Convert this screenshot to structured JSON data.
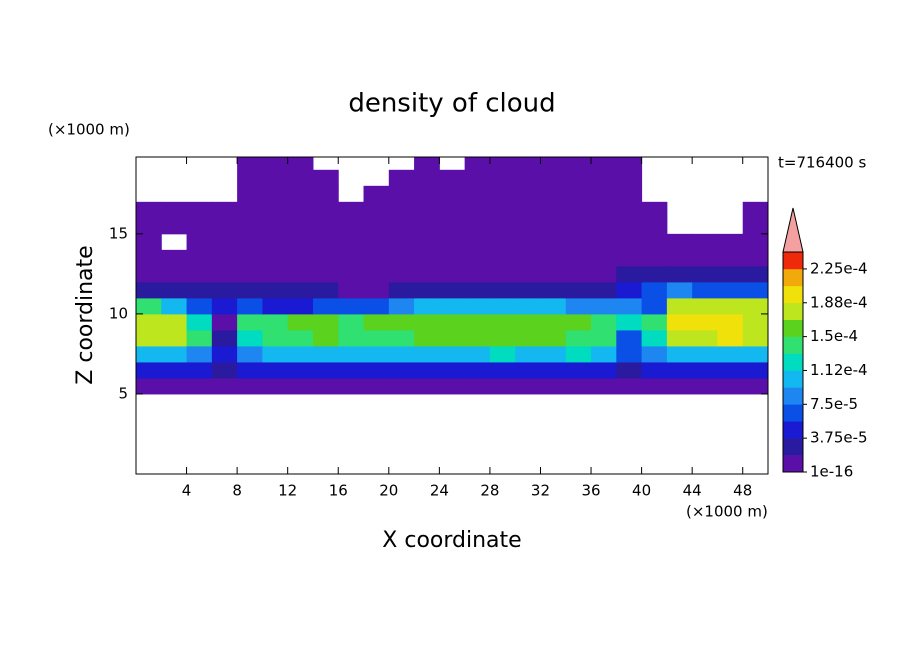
{
  "chart_data": {
    "type": "contour",
    "title": "density of cloud",
    "z_unit_label": "(×1000 m)",
    "x_unit_label": "(×1000 m)",
    "time_label": "t=716400 s",
    "xlabel": "X coordinate",
    "ylabel": "Z coordinate",
    "x": [
      1,
      3,
      5,
      7,
      9,
      11,
      13,
      15,
      17,
      19,
      21,
      23,
      25,
      27,
      29,
      31,
      33,
      35,
      37,
      39,
      41,
      43,
      45,
      47,
      49
    ],
    "z": [
      5.5,
      6.5,
      7.5,
      8.5,
      9.5,
      10.5,
      11.5,
      12.5,
      13.5,
      14.5,
      15.5,
      16.5,
      17.5,
      18.5,
      19.5
    ],
    "values": [
      [
        1.5e-05,
        1.5e-05,
        1.5e-05,
        1.5e-05,
        1.5e-05,
        1.5e-05,
        1.5e-05,
        1.5e-05,
        1.5e-05,
        1.5e-05,
        1.5e-05,
        1.5e-05,
        1.5e-05,
        1.5e-05,
        1.5e-05,
        1.5e-05,
        1.5e-05,
        1.5e-05,
        1.5e-05,
        1.5e-05,
        1.5e-05,
        1.5e-05,
        1.5e-05,
        1.5e-05,
        1.5e-05
      ],
      [
        5e-05,
        5e-05,
        5e-05,
        3e-05,
        5e-05,
        5e-05,
        5e-05,
        5e-05,
        5e-05,
        5e-05,
        5e-05,
        5e-05,
        5e-05,
        5e-05,
        5e-05,
        5e-05,
        5e-05,
        5e-05,
        5e-05,
        3e-05,
        5e-05,
        5e-05,
        5e-05,
        5e-05,
        5e-05
      ],
      [
        0.00011,
        0.00011,
        9e-05,
        5e-05,
        9e-05,
        0.00011,
        0.00011,
        0.00011,
        0.00011,
        0.00011,
        0.00011,
        0.00011,
        0.00011,
        0.00011,
        0.000125,
        0.00011,
        0.00011,
        0.000125,
        0.00011,
        7e-05,
        9e-05,
        0.00011,
        0.00011,
        0.00011,
        0.00011
      ],
      [
        0.00018,
        0.00018,
        0.00014,
        3e-05,
        0.000125,
        0.00014,
        0.00014,
        0.00016,
        0.00014,
        0.00014,
        0.00014,
        0.00016,
        0.00016,
        0.00016,
        0.00016,
        0.00016,
        0.00016,
        0.00014,
        0.00014,
        7e-05,
        0.000125,
        0.00018,
        0.00018,
        0.000195,
        0.00018
      ],
      [
        0.00018,
        0.00018,
        0.000125,
        5e-06,
        0.00014,
        0.00014,
        0.00016,
        0.00016,
        0.00014,
        0.00016,
        0.00016,
        0.00016,
        0.00016,
        0.00016,
        0.00016,
        0.00016,
        0.00016,
        0.00016,
        0.00014,
        0.000125,
        0.00014,
        0.000195,
        0.000195,
        0.000195,
        0.00018
      ],
      [
        0.00014,
        0.00011,
        7e-05,
        5e-05,
        7e-05,
        5e-05,
        5e-05,
        7e-05,
        7e-05,
        7e-05,
        9e-05,
        0.00011,
        0.00011,
        0.00011,
        0.00011,
        0.00011,
        0.00011,
        9e-05,
        9e-05,
        9e-05,
        7e-05,
        0.00018,
        0.00018,
        0.00018,
        0.00018
      ],
      [
        3e-05,
        3e-05,
        3e-05,
        3e-05,
        3e-05,
        3e-05,
        3e-05,
        3e-05,
        1.5e-05,
        1.5e-05,
        3e-05,
        3e-05,
        3e-05,
        3e-05,
        3e-05,
        3e-05,
        3e-05,
        3e-05,
        3e-05,
        5e-05,
        7e-05,
        9e-05,
        7e-05,
        7e-05,
        7e-05
      ],
      [
        1.5e-05,
        1.5e-05,
        5e-06,
        1.5e-05,
        1.5e-05,
        5e-06,
        5e-06,
        1.5e-05,
        5e-06,
        5e-06,
        1.5e-05,
        1.5e-05,
        1.5e-05,
        1.5e-05,
        1.5e-05,
        1.5e-05,
        1.5e-05,
        1.5e-05,
        1.5e-05,
        3e-05,
        3e-05,
        3e-05,
        3e-05,
        3e-05,
        3e-05
      ],
      [
        5e-06,
        5e-06,
        5e-06,
        5e-06,
        5e-06,
        5e-06,
        5e-06,
        5e-06,
        5e-06,
        5e-06,
        5e-06,
        5e-06,
        5e-06,
        5e-06,
        5e-06,
        5e-06,
        5e-06,
        5e-06,
        5e-06,
        5e-06,
        5e-06,
        5e-06,
        5e-06,
        5e-06,
        5e-06
      ],
      [
        5e-06,
        null,
        5e-06,
        5e-06,
        5e-06,
        5e-06,
        5e-06,
        5e-06,
        5e-06,
        5e-06,
        5e-06,
        5e-06,
        5e-06,
        5e-06,
        5e-06,
        5e-06,
        5e-06,
        5e-06,
        5e-06,
        5e-06,
        5e-06,
        5e-06,
        5e-06,
        5e-06,
        5e-06
      ],
      [
        5e-06,
        5e-06,
        5e-06,
        5e-06,
        5e-06,
        5e-06,
        5e-06,
        5e-06,
        5e-06,
        5e-06,
        5e-06,
        5e-06,
        5e-06,
        5e-06,
        5e-06,
        5e-06,
        5e-06,
        5e-06,
        5e-06,
        5e-06,
        5e-06,
        null,
        null,
        null,
        5e-06
      ],
      [
        5e-06,
        5e-06,
        5e-06,
        5e-06,
        5e-06,
        5e-06,
        5e-06,
        5e-06,
        5e-06,
        5e-06,
        5e-06,
        5e-06,
        5e-06,
        5e-06,
        5e-06,
        5e-06,
        5e-06,
        5e-06,
        5e-06,
        5e-06,
        5e-06,
        null,
        null,
        null,
        5e-06
      ],
      [
        null,
        null,
        null,
        null,
        5e-06,
        5e-06,
        5e-06,
        5e-06,
        null,
        5e-06,
        5e-06,
        5e-06,
        5e-06,
        5e-06,
        5e-06,
        5e-06,
        5e-06,
        5e-06,
        5e-06,
        5e-06,
        null,
        null,
        null,
        null,
        null
      ],
      [
        null,
        null,
        null,
        null,
        5e-06,
        5e-06,
        5e-06,
        5e-06,
        null,
        null,
        5e-06,
        5e-06,
        5e-06,
        5e-06,
        5e-06,
        5e-06,
        5e-06,
        5e-06,
        5e-06,
        5e-06,
        null,
        null,
        null,
        null,
        null
      ],
      [
        null,
        null,
        null,
        null,
        5e-06,
        5e-06,
        5e-06,
        null,
        null,
        null,
        null,
        5e-06,
        null,
        5e-06,
        5e-06,
        5e-06,
        5e-06,
        5e-06,
        5e-06,
        5e-06,
        null,
        null,
        null,
        null,
        null
      ]
    ],
    "xlim": [
      0,
      50
    ],
    "ylim": [
      0,
      19.8
    ],
    "xticks": [
      4,
      8,
      12,
      16,
      20,
      24,
      28,
      32,
      36,
      40,
      44,
      48
    ],
    "yticks": [
      5,
      10,
      15
    ],
    "levels": [
      1e-16,
      1.875e-05,
      3.75e-05,
      5.625e-05,
      7.5e-05,
      9.375e-05,
      0.0001125,
      0.00013125,
      0.00015,
      0.00016875,
      0.0001875,
      0.00020625,
      0.000225,
      0.00024375
    ],
    "colors": [
      "#5a10a8",
      "#2a1aa0",
      "#1a1ad2",
      "#0a50e6",
      "#1e86f0",
      "#14b8f0",
      "#00dcc0",
      "#30e070",
      "#5ad21e",
      "#bee61e",
      "#f0e10a",
      "#f0aa0a",
      "#ee2a0a"
    ],
    "extend_color": "#f4a0a0",
    "colorbar_ticks": [
      1e-16,
      {
        "value": 3.75e-05,
        "label": "3.75e-5"
      },
      {
        "value": 7.5e-05,
        "label": "7.5e-5"
      },
      {
        "value": 0.0001125,
        "label": "1.12e-4"
      },
      {
        "value": 0.00015,
        "label": "1.5e-4"
      },
      {
        "value": 0.0001875,
        "label": "1.88e-4"
      },
      {
        "value": 0.000225,
        "label": "2.25e-4"
      }
    ]
  }
}
